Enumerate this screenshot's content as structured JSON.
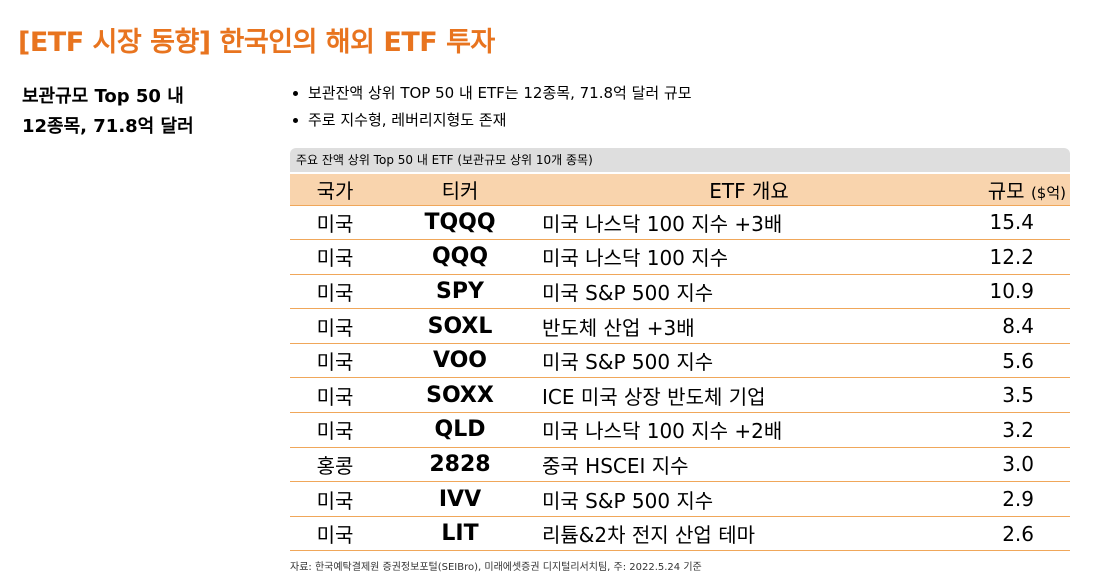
{
  "title": "[ETF 시장 동향] 한국인의 해외 ETF 투자",
  "side": {
    "line1": "보관규모 Top 50 내",
    "line2": "12종목, 71.8억 달러"
  },
  "bullets": [
    "보관잔액 상위 TOP 50 내 ETF는 12종목, 71.8억 달러 규모",
    "주로 지수형, 레버리지형도 존재"
  ],
  "table": {
    "caption": "주요 잔액 상위 Top 50 내 ETF (보관규모 상위 10개 종목)",
    "headers": {
      "country": "국가",
      "ticker": "티커",
      "overview": "ETF 개요",
      "size": "규모",
      "size_unit": "($억)"
    },
    "rows": [
      {
        "country": "미국",
        "ticker": "TQQQ",
        "overview": "미국 나스닥 100 지수 +3배",
        "size": "15.4"
      },
      {
        "country": "미국",
        "ticker": "QQQ",
        "overview": "미국 나스닥 100 지수",
        "size": "12.2"
      },
      {
        "country": "미국",
        "ticker": "SPY",
        "overview": "미국 S&P 500 지수",
        "size": "10.9"
      },
      {
        "country": "미국",
        "ticker": "SOXL",
        "overview": "반도체 산업 +3배",
        "size": "8.4"
      },
      {
        "country": "미국",
        "ticker": "VOO",
        "overview": "미국 S&P 500 지수",
        "size": "5.6"
      },
      {
        "country": "미국",
        "ticker": "SOXX",
        "overview": "ICE 미국 상장 반도체 기업",
        "size": "3.5"
      },
      {
        "country": "미국",
        "ticker": "QLD",
        "overview": "미국 나스닥 100 지수 +2배",
        "size": "3.2"
      },
      {
        "country": "홍콩",
        "ticker": "2828",
        "overview": "중국 HSCEI 지수",
        "size": "3.0"
      },
      {
        "country": "미국",
        "ticker": "IVV",
        "overview": "미국 S&P 500 지수",
        "size": "2.9"
      },
      {
        "country": "미국",
        "ticker": "LIT",
        "overview": "리튬&2차 전지 산업 테마",
        "size": "2.6"
      }
    ]
  },
  "source": "자료: 한국예탁결제원 증권정보포털(SEIBro), 미래에셋증권 디지털리서치팀, 주: 2022.5.24 기준",
  "colors": {
    "title": "#e8741f",
    "header_bg": "#f9d4ad",
    "border": "#f0a75a",
    "caption_bg": "#dedede"
  }
}
